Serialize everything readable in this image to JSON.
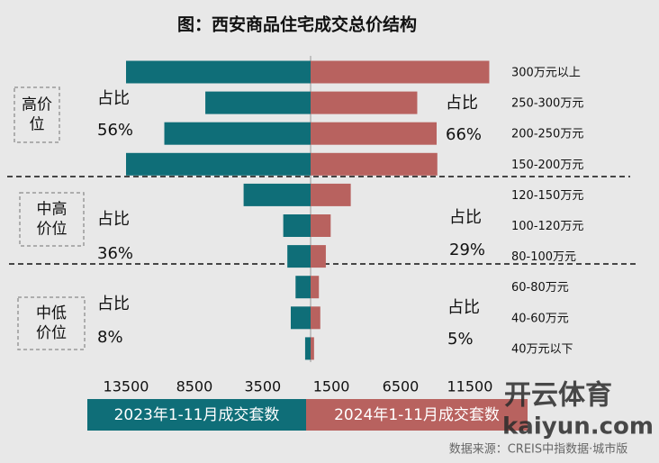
{
  "chart_data": {
    "type": "butterfly",
    "title": "图：西安商品住宅成交总价结构",
    "categories": [
      "300万元以上",
      "250-300万元",
      "200-250万元",
      "150-200万元",
      "120-150万元",
      "100-120万元",
      "80-100万元",
      "60-80万元",
      "40-60万元",
      "40万元以下"
    ],
    "series": [
      {
        "name": "2023年1-11月成交套数",
        "color": "#0f6e78",
        "side": "left",
        "values": [
          13500,
          7700,
          10700,
          13500,
          4900,
          2000,
          1700,
          1100,
          1450,
          400
        ],
        "xlim": [
          0,
          13500
        ],
        "xticks": [
          13500,
          8500,
          3500
        ]
      },
      {
        "name": "2024年1-11月成交套数",
        "color": "#b8625f",
        "side": "right",
        "values": [
          12900,
          7700,
          9100,
          9150,
          2900,
          1450,
          1100,
          600,
          700,
          250
        ],
        "xlim": [
          0,
          13000
        ],
        "xticks": [
          1500,
          6500,
          11500
        ]
      }
    ],
    "groups": [
      {
        "name_lines": [
          "高价",
          "位"
        ],
        "share_title": "占比",
        "shares": [
          56,
          66
        ],
        "share_labels": [
          "56%",
          "66%"
        ]
      },
      {
        "name_lines": [
          "中高",
          "价位"
        ],
        "share_title": "占比",
        "shares": [
          36,
          29
        ],
        "share_labels": [
          "36%",
          "29%"
        ]
      },
      {
        "name_lines": [
          "中低",
          "价位"
        ],
        "share_title": "占比",
        "shares": [
          8,
          5
        ],
        "share_labels": [
          "8%",
          "5%"
        ]
      }
    ],
    "source": "数据来源：CREIS中指数据·城市版",
    "watermark": [
      "开云体育",
      "kaiyun.com"
    ]
  }
}
